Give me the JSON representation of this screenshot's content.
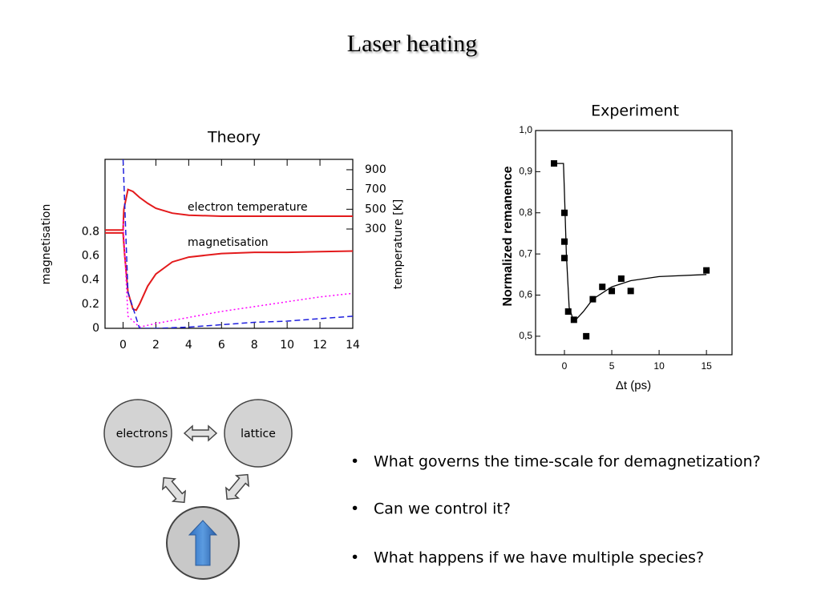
{
  "title": "Laser heating",
  "chart_data": [
    {
      "type": "line",
      "title": "Theory",
      "ylabel": "magnetisation",
      "y2label": "temperature [K]",
      "xlim": [
        -1.1,
        14
      ],
      "xticks": [
        0,
        2,
        4,
        6,
        8,
        10,
        12,
        14
      ],
      "ylim": [
        0,
        1.4
      ],
      "yticks": [
        0,
        0.2,
        0.4,
        0.6,
        0.8
      ],
      "y2lim": [
        -705,
        1005
      ],
      "y2ticks": [
        300,
        500,
        700,
        900
      ],
      "series": [
        {
          "name": "electron temperature",
          "color": "#e31a1c",
          "dash": "solid",
          "axis": "y2",
          "x": [
            -1.1,
            0,
            0.05,
            0.3,
            0.6,
            1,
            1.5,
            2,
            3,
            4,
            6,
            8,
            10,
            12,
            14
          ],
          "values": [
            290,
            290,
            500,
            700,
            680,
            620,
            560,
            510,
            460,
            440,
            430,
            430,
            430,
            430,
            430
          ]
        },
        {
          "name": "magnetisation",
          "color": "#e31a1c",
          "dash": "solid",
          "x": [
            -1.1,
            0,
            0.1,
            0.3,
            0.6,
            0.8,
            1,
            1.5,
            2,
            3,
            4,
            6,
            8,
            10,
            12,
            14
          ],
          "values": [
            0.79,
            0.79,
            0.6,
            0.3,
            0.16,
            0.15,
            0.2,
            0.35,
            0.45,
            0.55,
            0.59,
            0.62,
            0.63,
            0.63,
            0.635,
            0.64
          ]
        },
        {
          "color": "#ff00ff",
          "dash": "dotted",
          "x": [
            0,
            0.3,
            1,
            2,
            4,
            6,
            8,
            10,
            12,
            14
          ],
          "values": [
            0.9,
            0.1,
            0.01,
            0.04,
            0.09,
            0.14,
            0.18,
            0.22,
            0.26,
            0.29
          ]
        },
        {
          "color": "#1f1fdd",
          "dash": "dashed",
          "x": [
            0,
            0.3,
            1,
            2,
            4,
            6,
            8,
            10,
            12,
            14
          ],
          "values": [
            1.4,
            0.3,
            0,
            0,
            0.01,
            0.03,
            0.05,
            0.06,
            0.08,
            0.1
          ]
        }
      ]
    },
    {
      "type": "scatter",
      "title": "Experiment",
      "xlabel": "Δt (ps)",
      "ylabel": "Normalized remanence",
      "xlim": [
        -3.05,
        17.7
      ],
      "xticks": [
        0,
        5,
        10,
        15
      ],
      "ylim": [
        0.455,
        1.0
      ],
      "yticks": [
        {
          "value": 0.5,
          "label": "0,5"
        },
        {
          "value": 0.6,
          "label": "0,6"
        },
        {
          "value": 0.7,
          "label": "0,7"
        },
        {
          "value": 0.8,
          "label": "0,8"
        },
        {
          "value": 0.9,
          "label": "0,9"
        },
        {
          "value": 1.0,
          "label": "1,0"
        }
      ],
      "points": {
        "color": "#000000",
        "x": [
          -1.1,
          0,
          0,
          0,
          0.4,
          1,
          2.3,
          3,
          4,
          5,
          6,
          7,
          15
        ],
        "values": [
          0.92,
          0.8,
          0.73,
          0.69,
          0.56,
          0.54,
          0.5,
          0.59,
          0.62,
          0.61,
          0.64,
          0.61,
          0.66
        ]
      },
      "fit": {
        "color": "#000000",
        "x": [
          -1.1,
          -0.1,
          0,
          0.2,
          0.5,
          1,
          2,
          3,
          5,
          7,
          10,
          15
        ],
        "values": [
          0.92,
          0.92,
          0.85,
          0.7,
          0.57,
          0.535,
          0.56,
          0.59,
          0.62,
          0.635,
          0.645,
          0.65
        ]
      }
    }
  ],
  "diagram": {
    "nodes": [
      "electrons",
      "lattice"
    ]
  },
  "bullets": [
    "What governs the time-scale for demagnetization?",
    "Can we control it?",
    "What happens if we have multiple species?"
  ]
}
